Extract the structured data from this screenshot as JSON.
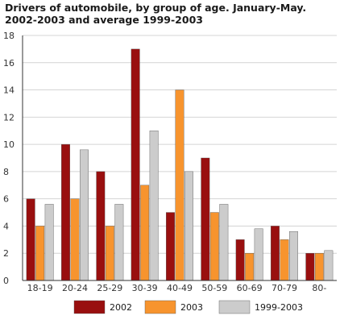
{
  "chart_data": {
    "type": "bar",
    "title": "Drivers of automobile, by group of age. January-May. 2002-2003 and average 1999-2003",
    "categories": [
      "18-19",
      "20-24",
      "25-29",
      "30-39",
      "40-49",
      "50-59",
      "60-69",
      "70-79",
      "80-"
    ],
    "series": [
      {
        "name": "2002",
        "color": "#990F0F",
        "values": [
          6,
          10,
          8,
          17,
          5,
          9,
          3,
          4,
          2
        ]
      },
      {
        "name": "2003",
        "color": "#F7942E",
        "values": [
          4,
          6,
          4,
          7,
          14,
          5,
          2,
          3,
          2
        ]
      },
      {
        "name": "1999-2003",
        "color": "#CCCCCC",
        "values": [
          5.6,
          9.6,
          5.6,
          11,
          8,
          5.6,
          3.8,
          3.6,
          2.2
        ]
      }
    ],
    "ylim": [
      0,
      18
    ],
    "yticks": [
      0,
      2,
      4,
      6,
      8,
      10,
      12,
      14,
      16,
      18
    ],
    "xlabel": "",
    "ylabel": "",
    "grid": "horizontal",
    "legend": "bottom"
  }
}
